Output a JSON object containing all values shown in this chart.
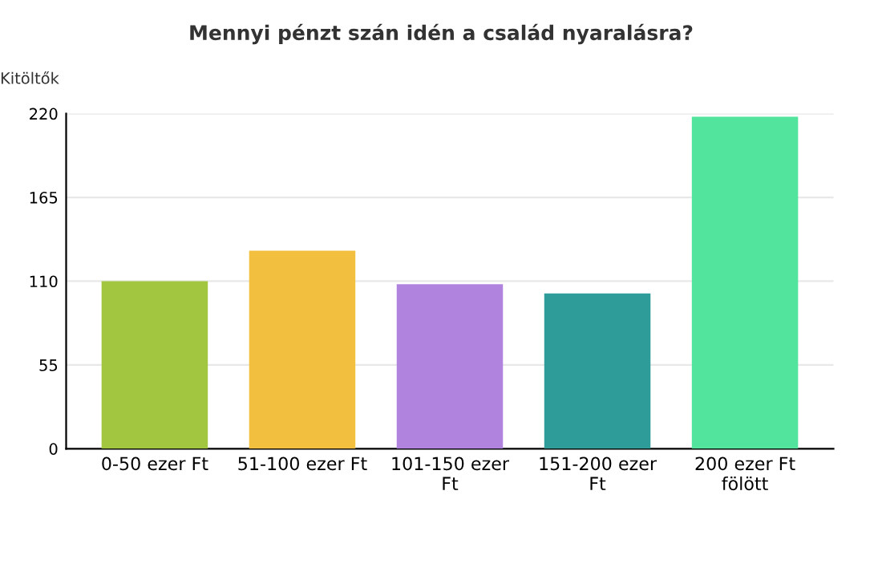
{
  "chart_data": {
    "type": "bar",
    "title": "Mennyi pénzt szán idén a család nyaralásra?",
    "ylabel": "Kitöltők",
    "categories": [
      "0-50 ezer Ft",
      "51-100 ezer Ft",
      "101-150 ezer\nFt",
      "151-200 ezer\nFt",
      "200 ezer Ft\nfölött"
    ],
    "values": [
      110,
      130,
      108,
      102,
      218
    ],
    "colors": [
      "#a2c640",
      "#f2c03e",
      "#b084de",
      "#2e9c98",
      "#52e49c"
    ],
    "ylim": [
      0,
      220
    ],
    "yticks": [
      0,
      55,
      110,
      165,
      220
    ],
    "grid": "y"
  }
}
